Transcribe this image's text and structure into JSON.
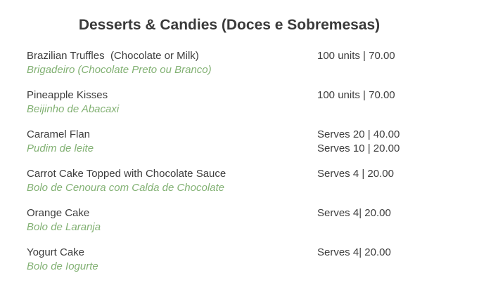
{
  "title": "Desserts & Candies (Doces e Sobremesas)",
  "items": [
    {
      "name": "Brazilian Truffles  (Chocolate or Milk)",
      "name_pt": "Brigadeiro (Chocolate Preto ou Branco)",
      "price_lines": [
        "100 units | 70.00"
      ]
    },
    {
      "name": "Pineapple Kisses",
      "name_pt": "Beijinho de Abacaxi",
      "price_lines": [
        "100 units | 70.00"
      ]
    },
    {
      "name": "Caramel Flan",
      "name_pt": "Pudim de leite",
      "price_lines": [
        "Serves 20 | 40.00",
        "Serves 10 | 20.00"
      ]
    },
    {
      "name": "Carrot Cake Topped with Chocolate Sauce",
      "name_pt": "Bolo de Cenoura com Calda de Chocolate",
      "price_lines": [
        "Serves 4 | 20.00"
      ]
    },
    {
      "name": "Orange Cake",
      "name_pt": "Bolo de Laranja",
      "price_lines": [
        "Serves 4| 20.00"
      ]
    },
    {
      "name": "Yogurt Cake",
      "name_pt": "Bolo de Iogurte",
      "price_lines": [
        "Serves 4| 20.00"
      ]
    }
  ],
  "colors": {
    "background": "#ffffff",
    "title": "#3a3a3a",
    "text": "#3d3d3d",
    "accent_green": "#82b173"
  }
}
